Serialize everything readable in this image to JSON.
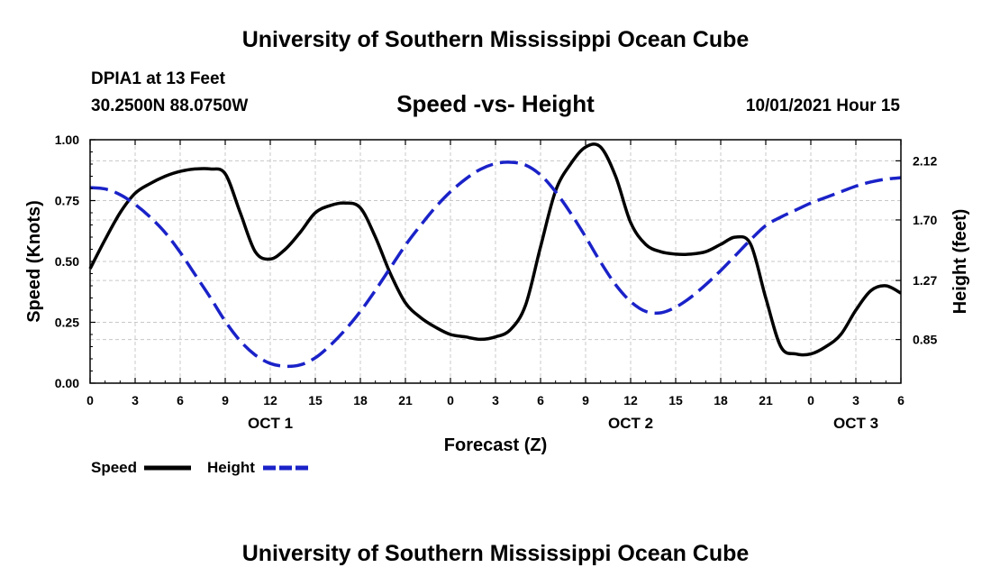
{
  "header": {
    "title": "University of Southern Mississippi Ocean Cube",
    "station": "DPIA1 at 13 Feet",
    "coordinates": "30.2500N  88.0750W",
    "chart_title": "Speed -vs- Height",
    "date_hour": "10/01/2021 Hour 15"
  },
  "footer": {
    "title": "University of Southern Mississippi Ocean Cube"
  },
  "colors": {
    "speed": "#000000",
    "height": "#1a22c8",
    "grid": "#c8c8c8"
  },
  "chart_data": {
    "type": "line",
    "title": "Speed -vs- Height",
    "xlabel": "Forecast (Z)",
    "ylabel": "Speed (Knots)",
    "y2label": "Height (feet)",
    "x_range": [
      0,
      54
    ],
    "ylim": [
      0,
      1.0
    ],
    "y2lim": [
      0.54,
      2.27
    ],
    "x_ticks": [
      0,
      3,
      6,
      9,
      12,
      15,
      18,
      21,
      24,
      27,
      30,
      33,
      36,
      39,
      42,
      45,
      48,
      51,
      54
    ],
    "x_tick_labels": [
      "0",
      "3",
      "6",
      "9",
      "12",
      "15",
      "18",
      "21",
      "0",
      "3",
      "6",
      "9",
      "12",
      "15",
      "18",
      "21",
      "0",
      "3",
      "6"
    ],
    "y_ticks": [
      0,
      0.25,
      0.5,
      0.75,
      1.0
    ],
    "y_tick_labels": [
      "0.00",
      "0.25",
      "0.50",
      "0.75",
      "1.00"
    ],
    "y2_ticks": [
      0.85,
      1.27,
      1.7,
      2.12
    ],
    "y2_tick_labels": [
      "0.85",
      "1.27",
      "1.70",
      "2.12"
    ],
    "day_labels": [
      {
        "x": 12,
        "label": "OCT 1"
      },
      {
        "x": 36,
        "label": "OCT 2"
      },
      {
        "x": 51,
        "label": "OCT 3"
      }
    ],
    "grid": true,
    "legend": {
      "position": "bottom-left"
    },
    "series": [
      {
        "name": "Speed",
        "axis": "left",
        "style": "solid",
        "x": [
          0,
          1,
          2,
          3,
          4,
          5,
          6,
          7,
          8,
          9,
          10,
          11,
          12,
          13,
          14,
          15,
          16,
          17,
          18,
          19,
          20,
          21,
          22,
          23,
          24,
          25,
          26,
          27,
          28,
          29,
          30,
          31,
          32,
          33,
          34,
          35,
          36,
          37,
          38,
          39,
          40,
          41,
          42,
          43,
          44,
          45,
          46,
          47,
          48,
          49,
          50,
          51,
          52,
          53,
          54
        ],
        "values": [
          0.47,
          0.59,
          0.7,
          0.78,
          0.82,
          0.85,
          0.87,
          0.88,
          0.88,
          0.86,
          0.7,
          0.54,
          0.51,
          0.55,
          0.62,
          0.7,
          0.73,
          0.74,
          0.72,
          0.6,
          0.45,
          0.33,
          0.27,
          0.23,
          0.2,
          0.19,
          0.18,
          0.19,
          0.22,
          0.32,
          0.56,
          0.79,
          0.9,
          0.97,
          0.97,
          0.85,
          0.66,
          0.57,
          0.54,
          0.53,
          0.53,
          0.54,
          0.57,
          0.6,
          0.57,
          0.35,
          0.15,
          0.12,
          0.12,
          0.15,
          0.2,
          0.3,
          0.38,
          0.4,
          0.37
        ]
      },
      {
        "name": "Height",
        "axis": "right",
        "style": "dashed",
        "x": [
          0,
          1,
          2,
          3,
          4,
          5,
          6,
          7,
          8,
          9,
          10,
          11,
          12,
          13,
          14,
          15,
          16,
          17,
          18,
          19,
          20,
          21,
          22,
          23,
          24,
          25,
          26,
          27,
          28,
          29,
          30,
          31,
          32,
          33,
          34,
          35,
          36,
          37,
          38,
          39,
          40,
          41,
          42,
          43,
          44,
          45,
          46,
          47,
          48,
          49,
          50,
          51,
          52,
          53,
          54
        ],
        "values": [
          1.93,
          1.92,
          1.88,
          1.81,
          1.72,
          1.61,
          1.47,
          1.31,
          1.15,
          0.98,
          0.84,
          0.74,
          0.68,
          0.66,
          0.67,
          0.72,
          0.81,
          0.92,
          1.05,
          1.2,
          1.36,
          1.52,
          1.66,
          1.79,
          1.9,
          1.99,
          2.06,
          2.1,
          2.11,
          2.09,
          2.02,
          1.9,
          1.75,
          1.58,
          1.4,
          1.24,
          1.12,
          1.05,
          1.04,
          1.08,
          1.15,
          1.24,
          1.34,
          1.45,
          1.56,
          1.66,
          1.72,
          1.77,
          1.82,
          1.86,
          1.9,
          1.94,
          1.97,
          1.99,
          2.0
        ]
      }
    ]
  }
}
